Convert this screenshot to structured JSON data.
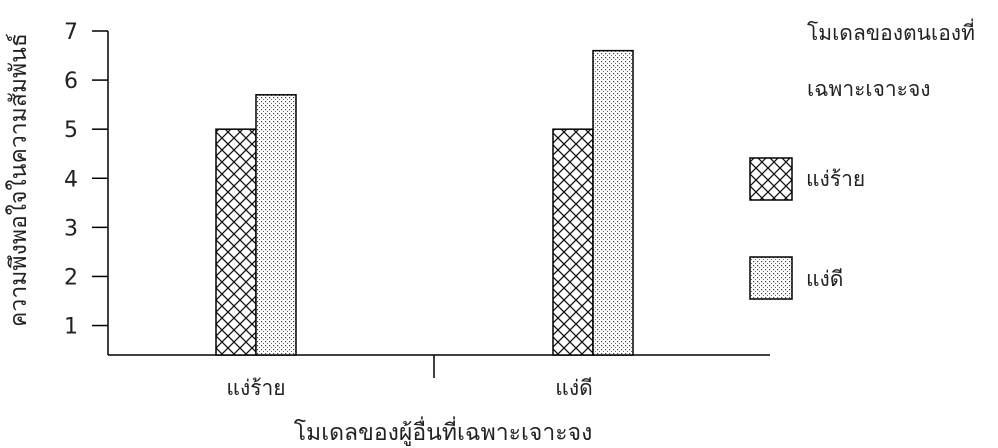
{
  "chart_data": {
    "type": "bar",
    "title": "",
    "xlabel": "โมเดลของผู้อื่นที่เฉพาะเจาะจง",
    "ylabel": "ความพึงพอใจในความสัมพันธ์",
    "ylim": [
      0.4,
      7
    ],
    "yticks": [
      1,
      2,
      3,
      4,
      5,
      6,
      7
    ],
    "categories": [
      "แง่ร้าย",
      "แง่ดี"
    ],
    "series": [
      {
        "name": "แง่ร้าย",
        "values": [
          5.0,
          5.0
        ],
        "pattern": "crosshatch"
      },
      {
        "name": "แง่ดี",
        "values": [
          5.7,
          6.6
        ],
        "pattern": "dots"
      }
    ],
    "legend": {
      "title_lines": [
        "โมเดลของตนเองที่",
        "เฉพาะเจาะจง"
      ],
      "placement": "right"
    },
    "grid": false
  }
}
